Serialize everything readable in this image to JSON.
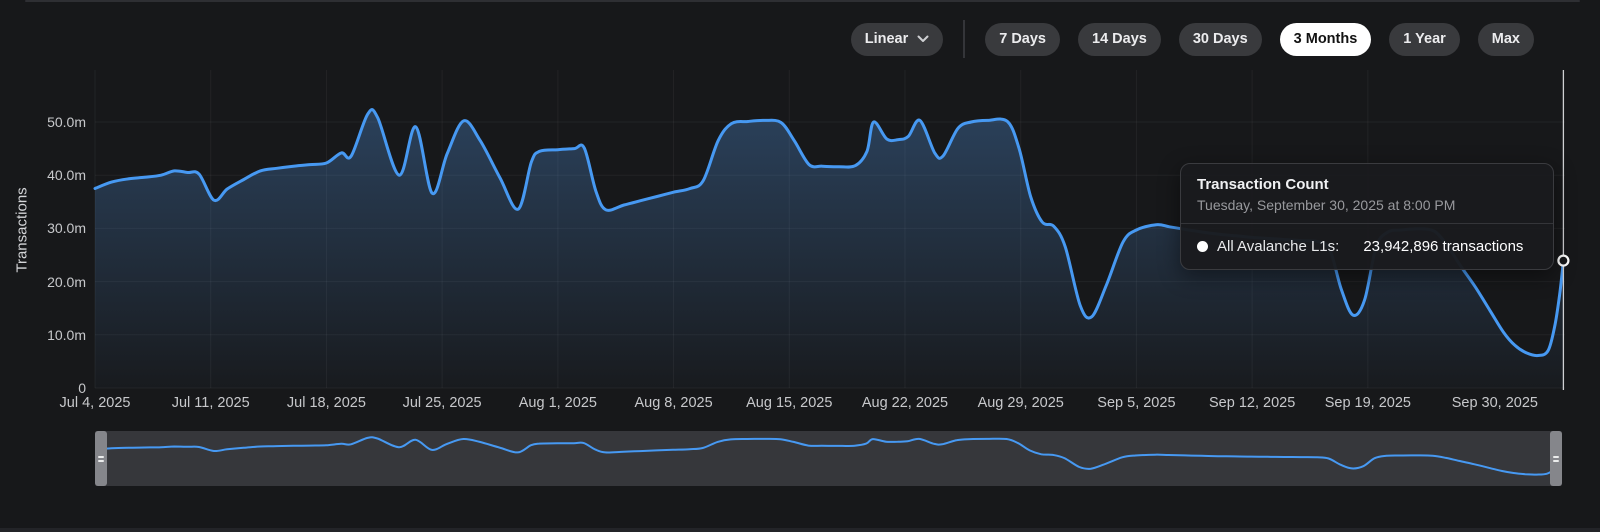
{
  "toolbar": {
    "scale_selector": {
      "label": "Linear"
    },
    "ranges": [
      {
        "label": "7 Days",
        "active": false
      },
      {
        "label": "14 Days",
        "active": false
      },
      {
        "label": "30 Days",
        "active": false
      },
      {
        "label": "3 Months",
        "active": true
      },
      {
        "label": "1 Year",
        "active": false
      },
      {
        "label": "Max",
        "active": false
      }
    ]
  },
  "tooltip": {
    "title": "Transaction Count",
    "subtitle": "Tuesday, September 30, 2025 at 8:00 PM",
    "series_label": "All Avalanche L1s:",
    "value": "23,942,896 transactions"
  },
  "colors": {
    "accent_blue": "#4799f2",
    "area_fill_base": "#569cec",
    "grid": "rgba(255,255,255,0.05)",
    "crosshair": "#cfd0d3",
    "active_pill": "#ffffff",
    "background": "#17181a"
  },
  "chart_data": {
    "type": "area",
    "title": "Transaction Count",
    "xlabel": "",
    "ylabel": "Transactions",
    "unit": "millions of transactions",
    "ylim": [
      0,
      55
    ],
    "grid": true,
    "x_domain_days": 88.83,
    "x_ticks": [
      "Jul 4, 2025",
      "Jul 11, 2025",
      "Jul 18, 2025",
      "Jul 25, 2025",
      "Aug 1, 2025",
      "Aug 8, 2025",
      "Aug 15, 2025",
      "Aug 22, 2025",
      "Aug 29, 2025",
      "Sep 5, 2025",
      "Sep 12, 2025",
      "Sep 19, 2025",
      "Sep 30, 2025"
    ],
    "x_tick_days": [
      0,
      7,
      14,
      21,
      28,
      35,
      42,
      49,
      56,
      63,
      70,
      77,
      88.83
    ],
    "y_ticks": [
      "50.0m",
      "40.0m",
      "30.0m",
      "20.0m",
      "10.0m",
      "0"
    ],
    "y_tick_values": [
      50,
      40,
      30,
      20,
      10,
      0
    ],
    "series": [
      {
        "name": "All Avalanche L1s",
        "start_date": "Jul 4, 2025",
        "points_format": [
          "day_offset_from_Jul_4_2025",
          "transactions_millions"
        ],
        "points": [
          [
            0,
            37.5
          ],
          [
            1,
            38.7
          ],
          [
            2,
            39.3
          ],
          [
            3,
            39.6
          ],
          [
            4,
            40.0
          ],
          [
            4.8,
            40.8
          ],
          [
            5.6,
            40.5
          ],
          [
            6.3,
            40.2
          ],
          [
            7.2,
            35.3
          ],
          [
            8,
            37.4
          ],
          [
            9,
            39.2
          ],
          [
            10,
            40.8
          ],
          [
            11,
            41.3
          ],
          [
            12,
            41.7
          ],
          [
            13,
            42.0
          ],
          [
            14,
            42.3
          ],
          [
            14.9,
            44.2
          ],
          [
            15.5,
            43.6
          ],
          [
            16.5,
            51.5
          ],
          [
            17.1,
            50.8
          ],
          [
            18.4,
            40.0
          ],
          [
            19.4,
            49.1
          ],
          [
            20.4,
            36.6
          ],
          [
            21.3,
            44.0
          ],
          [
            22.3,
            50.2
          ],
          [
            23.3,
            46.5
          ],
          [
            24.5,
            39.5
          ],
          [
            25.6,
            33.6
          ],
          [
            26.4,
            42.5
          ],
          [
            26.9,
            44.5
          ],
          [
            28,
            44.8
          ],
          [
            29,
            45.0
          ],
          [
            29.6,
            45.1
          ],
          [
            30.3,
            37.0
          ],
          [
            30.9,
            33.5
          ],
          [
            32,
            34.4
          ],
          [
            33,
            35.2
          ],
          [
            34,
            36.0
          ],
          [
            35,
            36.8
          ],
          [
            36,
            37.5
          ],
          [
            36.8,
            39.0
          ],
          [
            37.7,
            46.5
          ],
          [
            38.5,
            49.7
          ],
          [
            39.5,
            50.1
          ],
          [
            40.5,
            50.3
          ],
          [
            41.5,
            49.9
          ],
          [
            42.3,
            46.5
          ],
          [
            43.2,
            42.0
          ],
          [
            44,
            41.7
          ],
          [
            45,
            41.6
          ],
          [
            46,
            41.8
          ],
          [
            46.7,
            44.5
          ],
          [
            47.1,
            50.0
          ],
          [
            47.9,
            46.8
          ],
          [
            48.6,
            46.7
          ],
          [
            49.2,
            47.3
          ],
          [
            49.9,
            50.3
          ],
          [
            50.8,
            44.2
          ],
          [
            51.3,
            43.6
          ],
          [
            52.2,
            48.8
          ],
          [
            53,
            50.0
          ],
          [
            54,
            50.3
          ],
          [
            55.2,
            50.1
          ],
          [
            55.9,
            45.0
          ],
          [
            56.6,
            36.0
          ],
          [
            57.3,
            31.2
          ],
          [
            58,
            30.4
          ],
          [
            58.7,
            26.5
          ],
          [
            59.6,
            15.5
          ],
          [
            60.3,
            13.4
          ],
          [
            61.2,
            19.5
          ],
          [
            62.2,
            27.5
          ],
          [
            63,
            29.7
          ],
          [
            64.2,
            30.7
          ],
          [
            65,
            30.3
          ],
          [
            66,
            29.8
          ],
          [
            67,
            29.3
          ],
          [
            68,
            28.9
          ],
          [
            69,
            28.6
          ],
          [
            70,
            28.3
          ],
          [
            71,
            28.1
          ],
          [
            72,
            27.9
          ],
          [
            73,
            27.7
          ],
          [
            74,
            27.5
          ],
          [
            74.7,
            26.0
          ],
          [
            75.4,
            18.5
          ],
          [
            76.1,
            13.7
          ],
          [
            76.8,
            16.5
          ],
          [
            77.5,
            26.5
          ],
          [
            78.2,
            29.3
          ],
          [
            79,
            29.7
          ],
          [
            80,
            29.9
          ],
          [
            81,
            29.5
          ],
          [
            81.8,
            26.8
          ],
          [
            82.6,
            23.0
          ],
          [
            83.5,
            19.0
          ],
          [
            84.4,
            14.5
          ],
          [
            85.2,
            10.5
          ],
          [
            85.9,
            8.0
          ],
          [
            86.6,
            6.6
          ],
          [
            87.3,
            6.1
          ],
          [
            87.9,
            7.0
          ],
          [
            88.3,
            11.5
          ],
          [
            88.6,
            17.5
          ],
          [
            88.83,
            23.94
          ]
        ]
      }
    ],
    "highlight_point": {
      "day": 88.83,
      "value_m": 23.942896,
      "label": "Sep 30, 2025 8:00 PM"
    },
    "legend_position": "none",
    "navigator": {
      "selected_range": "full",
      "handles": [
        "left",
        "right"
      ]
    }
  }
}
